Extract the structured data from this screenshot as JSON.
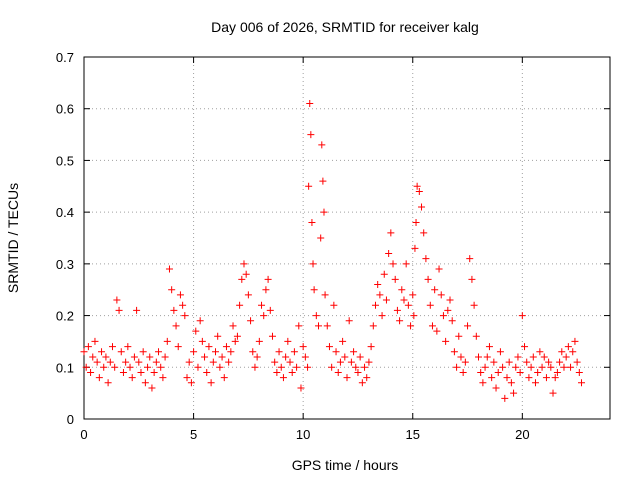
{
  "chart_data": {
    "type": "scatter",
    "title": "Day 006 of 2026, SRMTID for receiver kalg",
    "xlabel": "GPS time / hours",
    "ylabel": "SRMTID / TECUs",
    "xlim": [
      0,
      24
    ],
    "ylim": [
      0,
      0.7
    ],
    "xticks": [
      0,
      5,
      10,
      15,
      20
    ],
    "yticks": [
      0,
      0.1,
      0.2,
      0.3,
      0.4,
      0.5,
      0.6,
      0.7
    ],
    "xtick_labels": [
      "0",
      "5",
      "10",
      "15",
      "20"
    ],
    "ytick_labels": [
      "0",
      "0.1",
      "0.2",
      "0.3",
      "0.4",
      "0.5",
      "0.6",
      "0.7"
    ],
    "grid": true,
    "marker": "+",
    "series": [
      {
        "name": "SRMTID",
        "color": "#ff0000",
        "x": [
          0.0,
          0.1,
          0.2,
          0.3,
          0.4,
          0.5,
          0.6,
          0.7,
          0.8,
          0.9,
          1.0,
          1.1,
          1.2,
          1.3,
          1.4,
          1.5,
          1.6,
          1.7,
          1.8,
          1.9,
          2.0,
          2.1,
          2.2,
          2.3,
          2.4,
          2.5,
          2.6,
          2.7,
          2.8,
          2.9,
          3.0,
          3.1,
          3.2,
          3.3,
          3.4,
          3.5,
          3.6,
          3.7,
          3.8,
          3.9,
          4.0,
          4.1,
          4.2,
          4.3,
          4.4,
          4.5,
          4.6,
          4.7,
          4.8,
          4.9,
          5.0,
          5.1,
          5.2,
          5.3,
          5.4,
          5.5,
          5.6,
          5.7,
          5.8,
          5.9,
          6.0,
          6.1,
          6.2,
          6.3,
          6.4,
          6.5,
          6.6,
          6.7,
          6.8,
          6.9,
          7.0,
          7.1,
          7.2,
          7.3,
          7.4,
          7.5,
          7.6,
          7.7,
          7.8,
          7.9,
          8.0,
          8.1,
          8.2,
          8.3,
          8.4,
          8.5,
          8.6,
          8.7,
          8.8,
          8.9,
          9.0,
          9.1,
          9.2,
          9.3,
          9.4,
          9.5,
          9.6,
          9.7,
          9.8,
          9.9,
          10.0,
          10.1,
          10.2,
          10.25,
          10.3,
          10.35,
          10.4,
          10.45,
          10.5,
          10.6,
          10.7,
          10.8,
          10.85,
          10.9,
          10.95,
          11.0,
          11.1,
          11.2,
          11.3,
          11.4,
          11.5,
          11.6,
          11.7,
          11.8,
          11.9,
          12.0,
          12.1,
          12.2,
          12.3,
          12.4,
          12.5,
          12.6,
          12.7,
          12.8,
          12.9,
          13.0,
          13.1,
          13.2,
          13.3,
          13.4,
          13.5,
          13.6,
          13.7,
          13.8,
          13.9,
          14.0,
          14.1,
          14.2,
          14.3,
          14.4,
          14.5,
          14.6,
          14.7,
          14.8,
          14.9,
          15.0,
          15.05,
          15.1,
          15.15,
          15.2,
          15.3,
          15.4,
          15.5,
          15.6,
          15.7,
          15.8,
          15.9,
          16.0,
          16.1,
          16.2,
          16.3,
          16.4,
          16.5,
          16.6,
          16.7,
          16.8,
          16.9,
          17.0,
          17.1,
          17.2,
          17.3,
          17.4,
          17.5,
          17.6,
          17.7,
          17.8,
          17.9,
          18.0,
          18.1,
          18.2,
          18.3,
          18.4,
          18.5,
          18.6,
          18.7,
          18.8,
          18.9,
          19.0,
          19.1,
          19.2,
          19.3,
          19.4,
          19.5,
          19.6,
          19.7,
          19.8,
          19.9,
          20.0,
          20.1,
          20.2,
          20.3,
          20.4,
          20.5,
          20.6,
          20.7,
          20.8,
          20.9,
          21.0,
          21.1,
          21.2,
          21.3,
          21.4,
          21.5,
          21.6,
          21.7,
          21.8,
          21.9,
          22.0,
          22.1,
          22.2,
          22.3,
          22.4,
          22.5,
          22.6,
          22.7
        ],
        "y": [
          0.13,
          0.1,
          0.14,
          0.09,
          0.12,
          0.15,
          0.11,
          0.08,
          0.13,
          0.1,
          0.12,
          0.07,
          0.11,
          0.14,
          0.1,
          0.23,
          0.21,
          0.13,
          0.09,
          0.11,
          0.14,
          0.1,
          0.08,
          0.12,
          0.21,
          0.11,
          0.09,
          0.13,
          0.07,
          0.1,
          0.12,
          0.06,
          0.09,
          0.11,
          0.13,
          0.1,
          0.08,
          0.12,
          0.15,
          0.29,
          0.25,
          0.21,
          0.18,
          0.14,
          0.24,
          0.22,
          0.2,
          0.08,
          0.11,
          0.07,
          0.13,
          0.17,
          0.1,
          0.19,
          0.15,
          0.12,
          0.09,
          0.14,
          0.07,
          0.11,
          0.13,
          0.16,
          0.1,
          0.12,
          0.08,
          0.14,
          0.11,
          0.13,
          0.18,
          0.15,
          0.16,
          0.22,
          0.27,
          0.3,
          0.28,
          0.24,
          0.19,
          0.13,
          0.1,
          0.12,
          0.15,
          0.22,
          0.2,
          0.25,
          0.27,
          0.21,
          0.16,
          0.11,
          0.09,
          0.13,
          0.1,
          0.08,
          0.12,
          0.15,
          0.11,
          0.09,
          0.13,
          0.1,
          0.18,
          0.06,
          0.14,
          0.12,
          0.1,
          0.45,
          0.61,
          0.55,
          0.38,
          0.3,
          0.25,
          0.2,
          0.18,
          0.35,
          0.53,
          0.46,
          0.4,
          0.24,
          0.18,
          0.14,
          0.1,
          0.22,
          0.13,
          0.09,
          0.11,
          0.15,
          0.12,
          0.08,
          0.19,
          0.11,
          0.13,
          0.1,
          0.09,
          0.12,
          0.07,
          0.1,
          0.08,
          0.11,
          0.14,
          0.18,
          0.22,
          0.26,
          0.24,
          0.2,
          0.28,
          0.23,
          0.32,
          0.36,
          0.3,
          0.27,
          0.21,
          0.19,
          0.25,
          0.23,
          0.3,
          0.22,
          0.18,
          0.24,
          0.2,
          0.33,
          0.38,
          0.45,
          0.44,
          0.41,
          0.36,
          0.31,
          0.27,
          0.22,
          0.18,
          0.25,
          0.17,
          0.29,
          0.24,
          0.2,
          0.15,
          0.21,
          0.23,
          0.19,
          0.13,
          0.1,
          0.16,
          0.12,
          0.09,
          0.11,
          0.18,
          0.31,
          0.27,
          0.22,
          0.16,
          0.12,
          0.09,
          0.07,
          0.1,
          0.12,
          0.14,
          0.08,
          0.11,
          0.06,
          0.09,
          0.13,
          0.1,
          0.04,
          0.08,
          0.11,
          0.07,
          0.05,
          0.1,
          0.12,
          0.09,
          0.2,
          0.14,
          0.11,
          0.08,
          0.1,
          0.12,
          0.07,
          0.09,
          0.13,
          0.1,
          0.12,
          0.08,
          0.11,
          0.1,
          0.05,
          0.08,
          0.09,
          0.11,
          0.13,
          0.1,
          0.12,
          0.14,
          0.1,
          0.13,
          0.15,
          0.11,
          0.09,
          0.07
        ]
      }
    ]
  }
}
